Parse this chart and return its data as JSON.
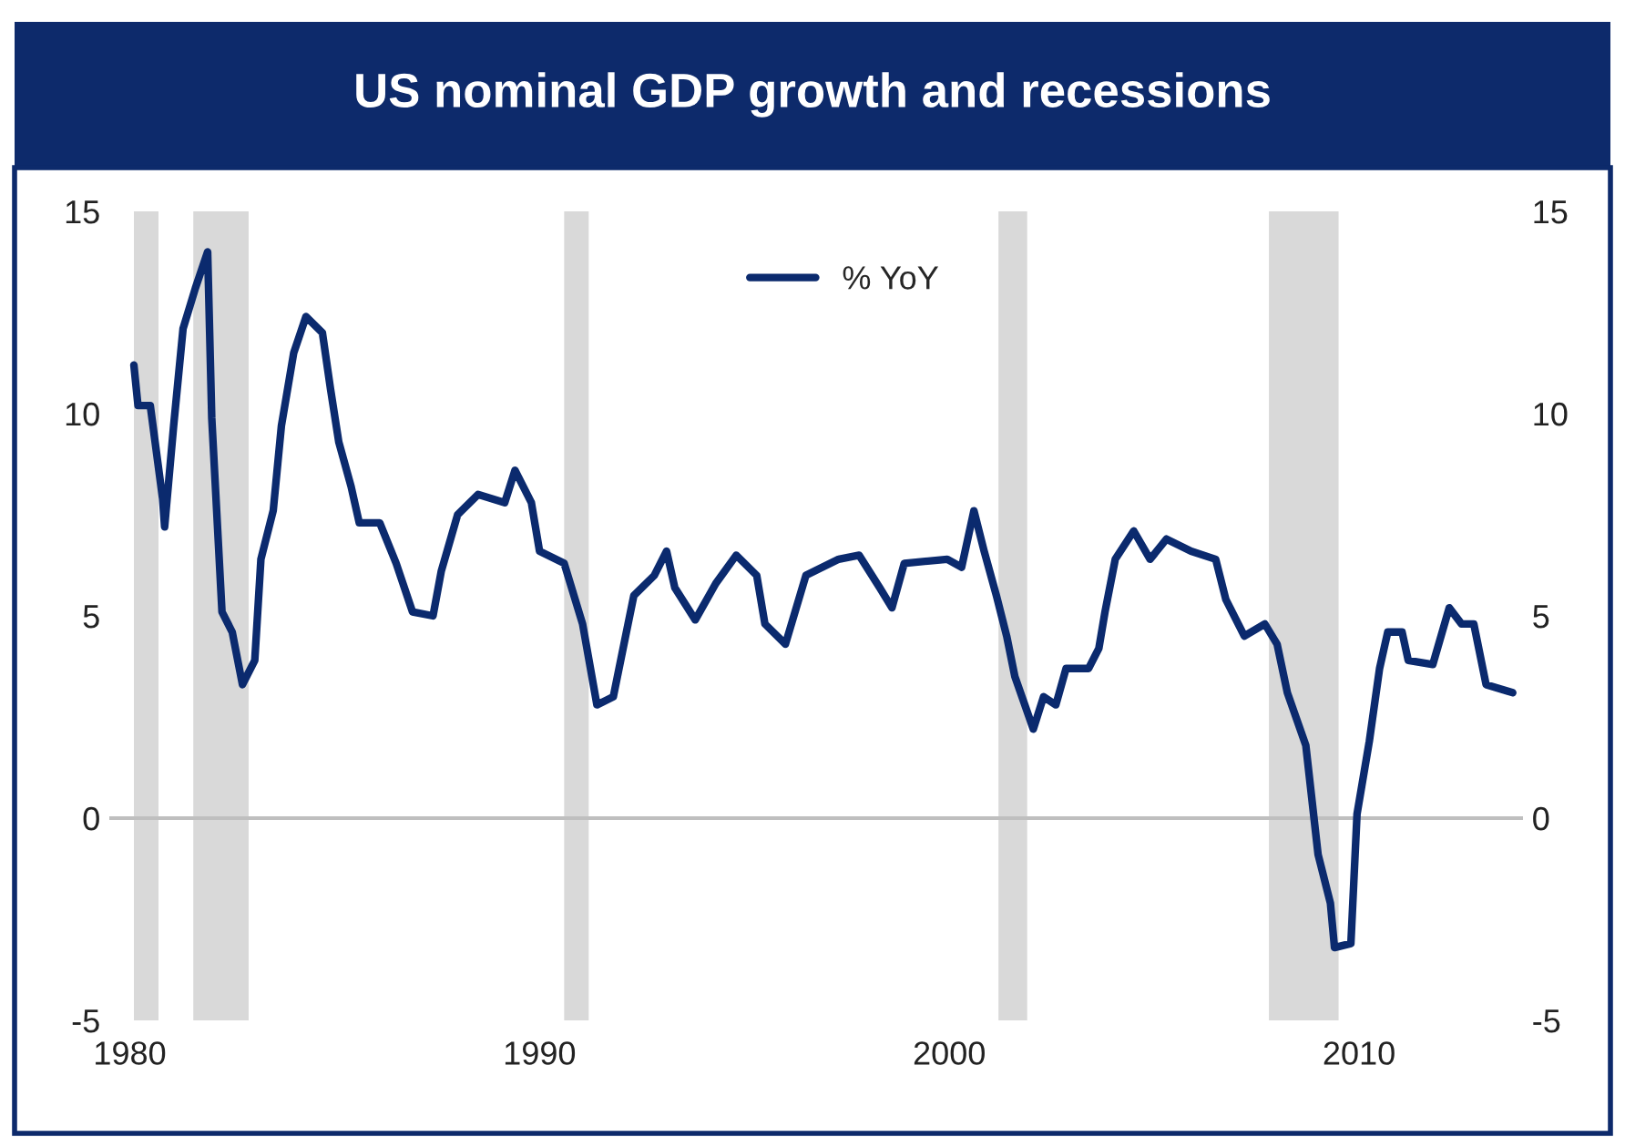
{
  "chart_data": {
    "type": "line",
    "title": "US nominal GDP growth and recessions",
    "xlim": [
      1979.5,
      2014
    ],
    "xticks": [
      1980,
      1990,
      2000,
      2010
    ],
    "ylim": [
      -5,
      15
    ],
    "yticks": [
      -5,
      0,
      5,
      10,
      15
    ],
    "y2lim": [
      -5,
      15
    ],
    "y2ticks": [
      -5,
      0,
      5,
      10,
      15
    ],
    "grid": false,
    "legend": "top",
    "series": [
      {
        "name": "% YoY",
        "color": "#0b2a6e",
        "x": [
          1980.1,
          1980.2,
          1980.5,
          1980.8,
          1980.85,
          1981.07,
          1981.3,
          1981.6,
          1981.9,
          1982.0,
          1982.25,
          1982.5,
          1982.75,
          1983.05,
          1983.2,
          1983.5,
          1983.7,
          1984.0,
          1984.3,
          1984.7,
          1984.9,
          1985.1,
          1985.4,
          1985.6,
          1986.1,
          1986.5,
          1986.9,
          1987.4,
          1987.6,
          1988.0,
          1988.5,
          1989.15,
          1989.4,
          1989.8,
          1990.0,
          1990.6,
          1991.05,
          1991.4,
          1991.8,
          1992.1,
          1992.3,
          1992.8,
          1993.1,
          1993.3,
          1993.8,
          1994.3,
          1994.8,
          1995.3,
          1995.5,
          1996.0,
          1996.5,
          1997.3,
          1997.8,
          1998.3,
          1998.6,
          1998.9,
          1999.95,
          2000.3,
          2000.6,
          2000.85,
          2001.15,
          2001.4,
          2001.6,
          2002.05,
          2002.3,
          2002.6,
          2002.85,
          2003.4,
          2003.65,
          2003.8,
          2004.05,
          2004.5,
          2004.9,
          2005.3,
          2005.9,
          2006.5,
          2006.75,
          2007.2,
          2007.7,
          2008.0,
          2008.25,
          2008.7,
          2009.0,
          2009.3,
          2009.4,
          2009.8,
          2009.95,
          2010.25,
          2010.5,
          2010.7,
          2011.05,
          2011.2,
          2011.8,
          2012.2,
          2012.5,
          2012.8,
          2013.1,
          2013.75
        ],
        "values": [
          11.2,
          10.2,
          10.2,
          7.9,
          7.2,
          9.7,
          12.1,
          13.1,
          14.0,
          9.9,
          5.1,
          4.6,
          3.3,
          3.9,
          6.4,
          7.6,
          9.7,
          11.5,
          12.4,
          12.0,
          10.6,
          9.3,
          8.2,
          7.3,
          7.3,
          6.3,
          5.1,
          5.0,
          6.1,
          7.5,
          8.0,
          7.8,
          8.6,
          7.8,
          6.6,
          6.3,
          4.8,
          2.8,
          3.0,
          4.5,
          5.5,
          6.0,
          6.6,
          5.7,
          4.9,
          5.8,
          6.5,
          6.0,
          4.8,
          4.3,
          6.0,
          6.4,
          6.5,
          5.7,
          5.2,
          6.3,
          6.4,
          6.2,
          7.6,
          6.6,
          5.5,
          4.5,
          3.5,
          2.2,
          3.0,
          2.8,
          3.7,
          3.7,
          4.2,
          5.1,
          6.4,
          7.1,
          6.4,
          6.9,
          6.6,
          6.4,
          5.4,
          4.5,
          4.8,
          4.3,
          3.1,
          1.8,
          -0.9,
          -2.1,
          -3.2,
          -3.1,
          0.1,
          1.9,
          3.7,
          4.6,
          4.6,
          3.9,
          3.8,
          5.2,
          4.8,
          4.8,
          3.3,
          3.1
        ]
      }
    ],
    "ref_lines": [
      {
        "axis": "y",
        "value": 0,
        "color": "#bfbfbf"
      }
    ],
    "bands": [
      {
        "axis": "x",
        "from": 1980.1,
        "to": 1980.7,
        "color": "#d9d9d9"
      },
      {
        "axis": "x",
        "from": 1981.55,
        "to": 1982.9,
        "color": "#d9d9d9"
      },
      {
        "axis": "x",
        "from": 1990.6,
        "to": 1991.2,
        "color": "#d9d9d9"
      },
      {
        "axis": "x",
        "from": 2001.2,
        "to": 2001.9,
        "color": "#d9d9d9"
      },
      {
        "axis": "x",
        "from": 2007.8,
        "to": 2009.5,
        "color": "#d9d9d9"
      }
    ]
  }
}
